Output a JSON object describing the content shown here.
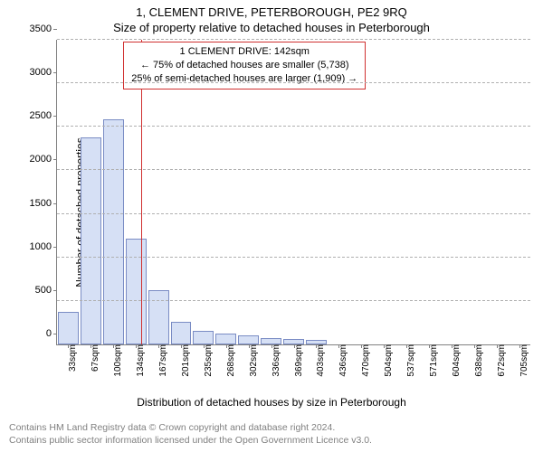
{
  "title_line1": "1, CLEMENT DRIVE, PETERBOROUGH, PE2 9RQ",
  "title_line2": "Size of property relative to detached houses in Peterborough",
  "ylabel": "Number of detached properties",
  "xlabel": "Distribution of detached houses by size in Peterborough",
  "footer_line1": "Contains HM Land Registry data © Crown copyright and database right 2024.",
  "footer_line2": "Contains public sector information licensed under the Open Government Licence v3.0.",
  "chart": {
    "type": "histogram",
    "background_color": "#ffffff",
    "grid_color": "#b0b0b0",
    "axis_color": "#808080",
    "bar_fill": "#d6e0f5",
    "bar_border": "#7a8cc4",
    "refline_color": "#d03030",
    "annot_border": "#d03030",
    "ylim": [
      0,
      3500
    ],
    "ytick_step": 500,
    "yticks": [
      0,
      500,
      1000,
      1500,
      2000,
      2500,
      3000,
      3500
    ],
    "xticks": [
      "33sqm",
      "67sqm",
      "100sqm",
      "134sqm",
      "167sqm",
      "201sqm",
      "235sqm",
      "268sqm",
      "302sqm",
      "336sqm",
      "369sqm",
      "403sqm",
      "436sqm",
      "470sqm",
      "504sqm",
      "537sqm",
      "571sqm",
      "604sqm",
      "638sqm",
      "672sqm",
      "705sqm"
    ],
    "values": [
      370,
      2380,
      2590,
      1220,
      620,
      260,
      160,
      120,
      100,
      70,
      60,
      50,
      0,
      0,
      0,
      0,
      0,
      0,
      0,
      0,
      0
    ],
    "bar_width_ratio": 0.92,
    "ref_value_sqm": 142,
    "x_min_sqm": 16,
    "x_max_sqm": 722
  },
  "annotation": {
    "line1": "1 CLEMENT DRIVE: 142sqm",
    "line2": "← 75% of detached houses are smaller (5,738)",
    "line3": "25% of semi-detached houses are larger (1,909) →"
  },
  "fontsize": {
    "title": 13,
    "axis_label": 12,
    "tick": 11,
    "xtick": 10,
    "annot": 11,
    "footer": 10.5
  }
}
